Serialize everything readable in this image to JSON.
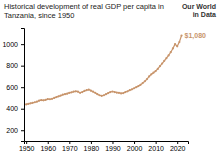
{
  "chart_data": {
    "type": "line",
    "title": "Historical development of real GDP per capita in Tanzania, since 1950",
    "x": [
      1950,
      1951,
      1952,
      1953,
      1954,
      1955,
      1956,
      1957,
      1958,
      1959,
      1960,
      1961,
      1962,
      1963,
      1964,
      1965,
      1966,
      1967,
      1968,
      1969,
      1970,
      1971,
      1972,
      1973,
      1974,
      1975,
      1976,
      1977,
      1978,
      1979,
      1980,
      1981,
      1982,
      1983,
      1984,
      1985,
      1986,
      1987,
      1988,
      1989,
      1990,
      1991,
      1992,
      1993,
      1994,
      1995,
      1996,
      1997,
      1998,
      1999,
      2000,
      2001,
      2002,
      2003,
      2004,
      2005,
      2006,
      2007,
      2008,
      2009,
      2010,
      2011,
      2012,
      2013,
      2014,
      2015,
      2016,
      2017,
      2018,
      2019,
      2020,
      2021,
      2022
    ],
    "values": [
      440,
      445,
      450,
      455,
      460,
      465,
      475,
      480,
      478,
      482,
      490,
      488,
      492,
      500,
      508,
      515,
      522,
      530,
      535,
      540,
      548,
      552,
      558,
      562,
      558,
      548,
      555,
      565,
      572,
      578,
      568,
      558,
      548,
      535,
      525,
      520,
      525,
      535,
      545,
      555,
      560,
      555,
      550,
      548,
      542,
      545,
      555,
      562,
      572,
      580,
      590,
      600,
      610,
      622,
      638,
      655,
      675,
      700,
      720,
      735,
      750,
      770,
      795,
      820,
      845,
      870,
      895,
      925,
      960,
      1000,
      980,
      1020,
      1080
    ],
    "color": "#c8956c",
    "xlim": [
      1949,
      2025
    ],
    "xticks": [
      1950,
      1960,
      1970,
      1980,
      1990,
      2000,
      2010,
      2020
    ],
    "ylim": [
      100,
      1150
    ],
    "yticks": [
      200,
      400,
      600,
      800,
      1000
    ],
    "annotations": [
      {
        "text": "$1,080",
        "x": 2022,
        "y": 1080
      },
      {
        "text": "Our World"
      },
      {
        "text": "in Data"
      }
    ]
  }
}
